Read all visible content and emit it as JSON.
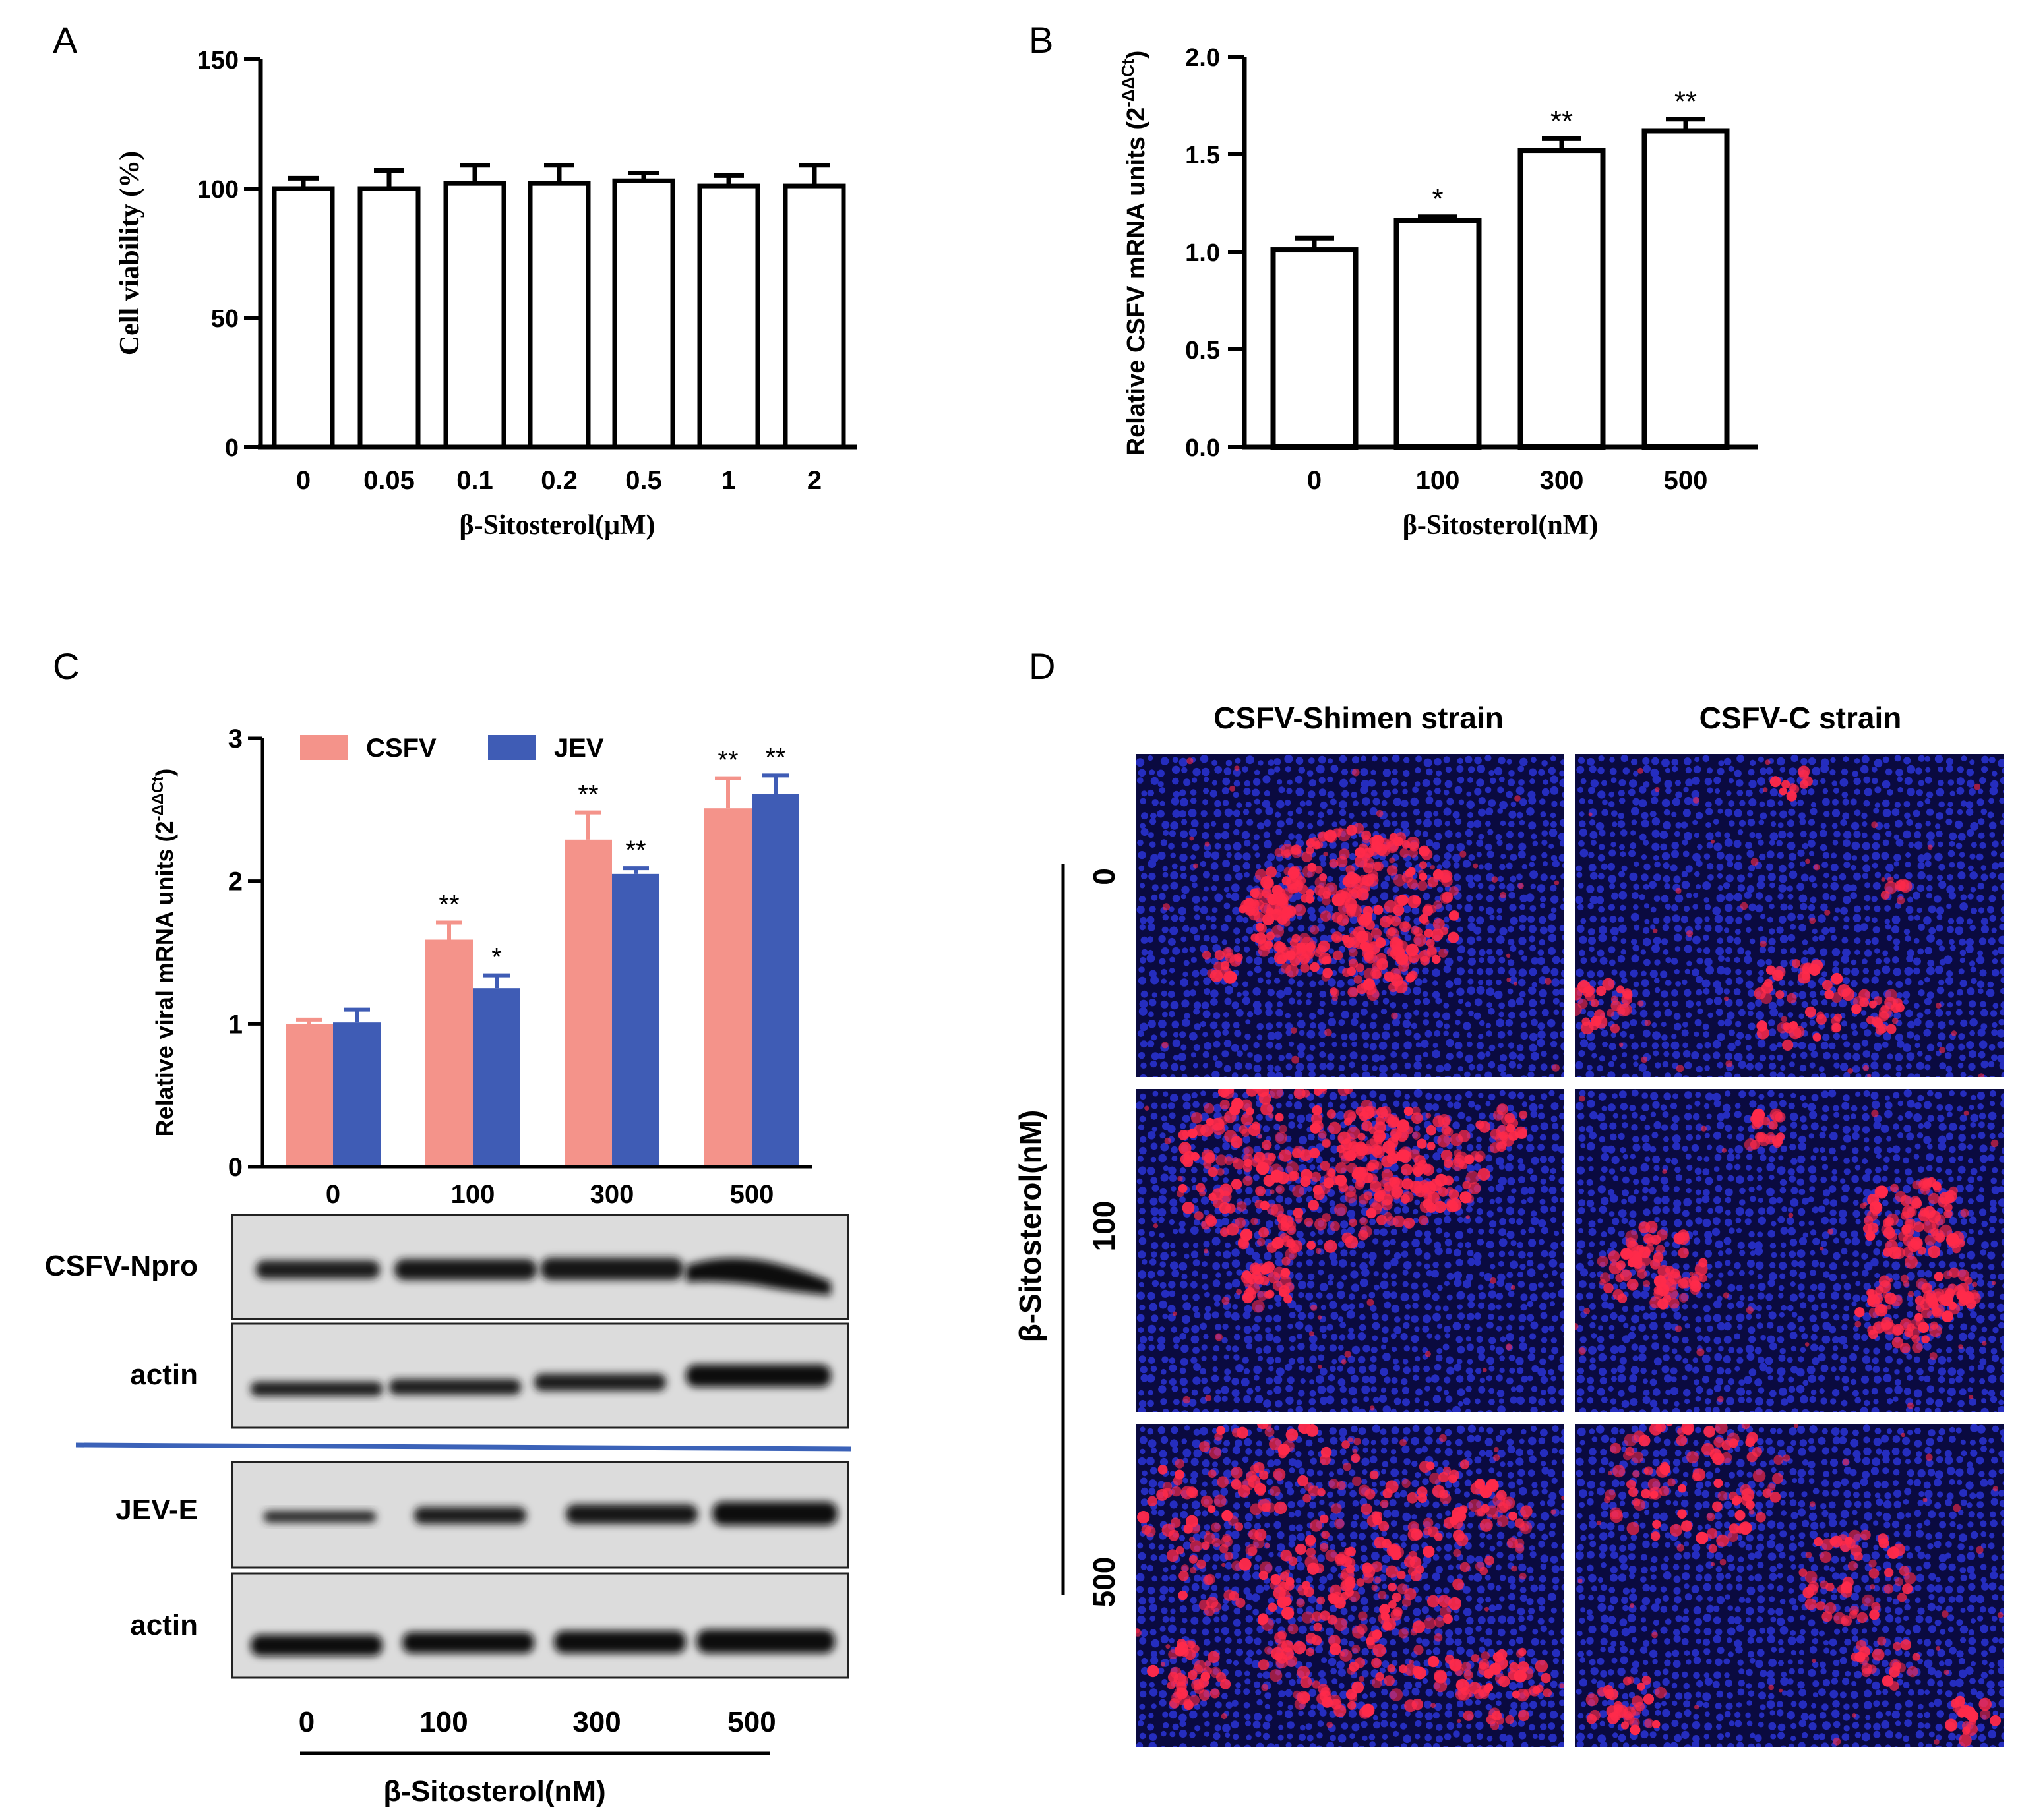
{
  "panels": {
    "A": "A",
    "B": "B",
    "C": "C",
    "D": "D"
  },
  "chart_data": [
    {
      "id": "A",
      "type": "bar",
      "categories": [
        "0",
        "0.05",
        "0.1",
        "0.2",
        "0.5",
        "1",
        "2"
      ],
      "values": [
        100,
        100,
        102,
        102,
        103,
        101,
        101
      ],
      "errors": [
        4,
        7,
        7,
        7,
        3,
        4,
        8
      ],
      "xlabel": "β-Sitosterol(μM)",
      "ylabel": "Cell viability (%)",
      "ylim": [
        0,
        150
      ],
      "yticks": [
        "0",
        "50",
        "100",
        "150"
      ]
    },
    {
      "id": "B",
      "type": "bar",
      "categories": [
        "0",
        "100",
        "300",
        "500"
      ],
      "values": [
        1.01,
        1.16,
        1.52,
        1.62
      ],
      "errors": [
        0.06,
        0.02,
        0.06,
        0.06
      ],
      "significance": [
        "",
        "*",
        "**",
        "**"
      ],
      "xlabel": "β-Sitosterol(nM)",
      "ylabel": "Relative CSFV mRNA units (2",
      "ylabel_sup": "-ΔΔCt",
      "ylabel_close": ")",
      "ylim": [
        0,
        2.0
      ],
      "yticks": [
        "0.0",
        "0.5",
        "1.0",
        "1.5",
        "2.0"
      ]
    },
    {
      "id": "C",
      "type": "bar",
      "categories": [
        "0",
        "100",
        "300",
        "500"
      ],
      "series": [
        {
          "name": "CSFV",
          "color": "#f4938a",
          "values": [
            1.0,
            1.59,
            2.29,
            2.51
          ],
          "errors": [
            0.03,
            0.12,
            0.19,
            0.21
          ],
          "significance": [
            "",
            "**",
            "**",
            "**"
          ]
        },
        {
          "name": "JEV",
          "color": "#3f5cb5",
          "values": [
            1.01,
            1.25,
            2.05,
            2.61
          ],
          "errors": [
            0.09,
            0.09,
            0.04,
            0.13
          ],
          "significance": [
            "",
            "*",
            "**",
            "**"
          ]
        }
      ],
      "ylabel": "Relative viral mRNA units (2",
      "ylabel_sup": "-ΔΔCt",
      "ylabel_close": ")",
      "ylim": [
        0,
        3
      ],
      "yticks": [
        "0",
        "1",
        "2",
        "3"
      ],
      "legend": "top"
    }
  ],
  "blots": {
    "labels": [
      "CSFV-Npro",
      "actin",
      "JEV-E",
      "actin"
    ],
    "lanes": [
      "0",
      "100",
      "300",
      "500"
    ],
    "xlabel": "β-Sitosterol(nM)"
  },
  "microscopy": {
    "columns": [
      "CSFV-Shimen strain",
      "CSFV-C strain"
    ],
    "rows": [
      "0",
      "100",
      "500"
    ],
    "ylabel": "β-Sitosterol(nM)"
  },
  "colors": {
    "csfv": "#f4938a",
    "jev": "#3f5cb5",
    "nucleus_bg": "#0a0a40",
    "nucleus": "#2a34d6",
    "infected": "#ff2a4a"
  }
}
